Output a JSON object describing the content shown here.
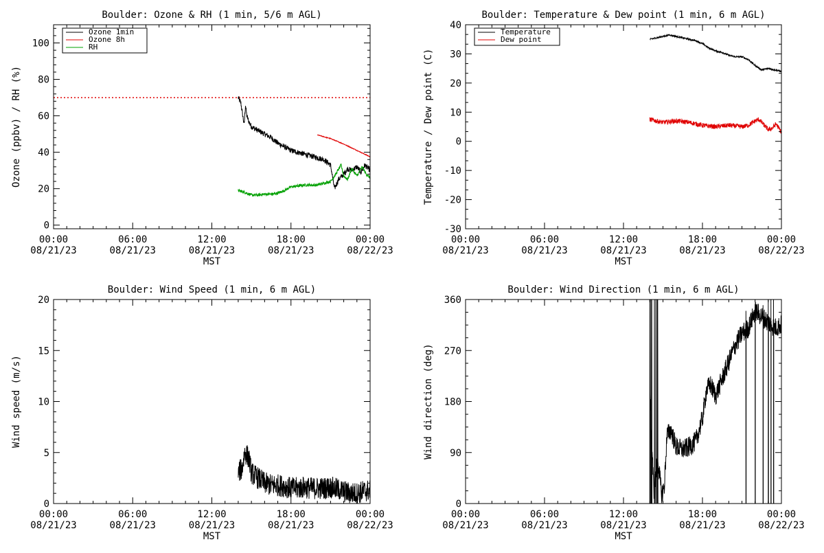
{
  "colors": {
    "black": "#000000",
    "red": "#e00000",
    "green": "#00a000",
    "background": "#ffffff"
  },
  "x_axis": {
    "ticks": [
      {
        "time": "00:00",
        "date": "08/21/23",
        "hour": 0
      },
      {
        "time": "06:00",
        "date": "08/21/23",
        "hour": 6
      },
      {
        "time": "12:00",
        "date": "08/21/23",
        "hour": 12
      },
      {
        "time": "18:00",
        "date": "08/21/23",
        "hour": 18
      },
      {
        "time": "00:00",
        "date": "08/22/23",
        "hour": 24
      }
    ],
    "xlabel": "MST"
  },
  "chart_data": [
    {
      "type": "line",
      "title": "Boulder: Ozone & RH (1 min, 5/6 m AGL)",
      "ylabel": "Ozone (ppbv) / RH (%)",
      "xlabel": "MST",
      "xlim": [
        0,
        24
      ],
      "ylim": [
        -2,
        110
      ],
      "yticks": [
        0,
        20,
        40,
        60,
        80,
        100
      ],
      "legend": "top-left",
      "reference_line": {
        "y": 70,
        "color": "#e00000",
        "style": "dotted"
      },
      "series": [
        {
          "name": "Ozone 1min",
          "color": "#000000",
          "x": [
            14.0,
            14.2,
            14.45,
            14.55,
            14.65,
            14.8,
            15.0,
            15.5,
            16.0,
            16.5,
            17.0,
            17.5,
            18.0,
            18.5,
            19.0,
            19.5,
            20.0,
            20.5,
            21.0,
            21.3,
            21.6,
            22.0,
            22.3,
            22.6,
            23.0,
            23.3,
            23.6,
            24.0
          ],
          "y": [
            70,
            67,
            55,
            66,
            60,
            57,
            54,
            52,
            50,
            48,
            45,
            43,
            41,
            40,
            39,
            38,
            37,
            36,
            33,
            20,
            25,
            28,
            31,
            30,
            32,
            29,
            33,
            30
          ],
          "noise": 1.5
        },
        {
          "name": "Ozone 8h",
          "color": "#e00000",
          "x": [
            20.0,
            21.0,
            22.0,
            23.0,
            24.0
          ],
          "y": [
            49.5,
            47.5,
            44.5,
            41,
            37.5
          ],
          "noise": 0.2
        },
        {
          "name": "RH",
          "color": "#00a000",
          "x": [
            14.0,
            14.5,
            15.0,
            15.5,
            16.0,
            16.5,
            17.0,
            17.5,
            18.0,
            19.0,
            20.0,
            20.5,
            21.0,
            21.4,
            21.8,
            22.0,
            22.3,
            22.6,
            23.0,
            23.4,
            23.7,
            24.0
          ],
          "y": [
            19,
            18,
            16.5,
            16.5,
            17,
            17,
            17.5,
            19,
            21,
            22,
            22,
            23,
            24,
            28,
            33,
            27,
            25,
            31,
            27,
            32,
            28,
            26
          ],
          "noise": 0.8
        }
      ]
    },
    {
      "type": "line",
      "title": "Boulder: Temperature & Dew point (1 min, 6 m AGL)",
      "ylabel": "Temperature / Dew point (C)",
      "xlabel": "MST",
      "xlim": [
        0,
        24
      ],
      "ylim": [
        -30,
        40
      ],
      "yticks": [
        -30,
        -20,
        -10,
        0,
        10,
        20,
        30,
        40
      ],
      "legend": "top-left",
      "series": [
        {
          "name": "Temperature",
          "color": "#000000",
          "x": [
            14.0,
            14.5,
            15.0,
            15.5,
            16.0,
            16.5,
            17.0,
            17.5,
            18.0,
            18.5,
            19.0,
            19.5,
            20.0,
            20.5,
            21.0,
            21.5,
            22.0,
            22.5,
            23.0,
            23.5,
            24.0
          ],
          "y": [
            35,
            35.5,
            36,
            36.5,
            36,
            35.5,
            35,
            34.5,
            33.5,
            32,
            31,
            30.5,
            29.5,
            29,
            29,
            28,
            26,
            24.5,
            25,
            24.5,
            24
          ],
          "noise": 0.3
        },
        {
          "name": "Dew point",
          "color": "#e00000",
          "x": [
            14.0,
            14.5,
            15.0,
            16.0,
            17.0,
            18.0,
            19.0,
            20.0,
            21.0,
            21.5,
            22.0,
            22.3,
            22.6,
            23.0,
            23.3,
            23.6,
            24.0
          ],
          "y": [
            7.5,
            7,
            6.5,
            7,
            6.5,
            5.5,
            5,
            5.5,
            5,
            5.5,
            7,
            7.5,
            6,
            4,
            4.5,
            6,
            3
          ],
          "noise": 0.8
        }
      ]
    },
    {
      "type": "line",
      "title": "Boulder: Wind Speed (1 min, 6 m AGL)",
      "ylabel": "Wind speed (m/s)",
      "xlabel": "MST",
      "xlim": [
        0,
        24
      ],
      "ylim": [
        0,
        20
      ],
      "yticks": [
        0,
        5,
        10,
        15,
        20
      ],
      "series": [
        {
          "name": "",
          "color": "#000000",
          "x": [
            14.0,
            14.3,
            14.5,
            14.8,
            15.0,
            15.5,
            16.0,
            16.5,
            17.0,
            17.5,
            18.0,
            18.5,
            19.0,
            19.5,
            20.0,
            20.5,
            21.0,
            21.5,
            22.0,
            22.5,
            23.0,
            23.5,
            24.0
          ],
          "y": [
            3,
            3.5,
            5.0,
            4.5,
            3,
            2.5,
            2,
            1.8,
            1.8,
            1.7,
            1.5,
            1.5,
            1.6,
            1.5,
            1.5,
            1.5,
            1.6,
            1.4,
            1.2,
            1,
            1,
            1.2,
            1.3
          ],
          "noise": 1.1
        }
      ]
    },
    {
      "type": "line",
      "title": "Boulder: Wind Direction (1 min, 6 m AGL)",
      "ylabel": "Wind direction (deg)",
      "xlabel": "MST",
      "xlim": [
        0,
        24
      ],
      "ylim": [
        0,
        360
      ],
      "yticks": [
        0,
        90,
        180,
        270,
        360
      ],
      "series": [
        {
          "name": "",
          "color": "#000000",
          "x": [
            14.0,
            14.3,
            14.6,
            14.9,
            15.1,
            15.3,
            15.6,
            16.0,
            16.5,
            17.0,
            17.5,
            18.0,
            18.3,
            18.6,
            19.0,
            19.5,
            20.0,
            20.5,
            21.0,
            21.5,
            22.0,
            22.5,
            23.0,
            23.5,
            24.0
          ],
          "y": [
            200,
            20,
            80,
            15,
            30,
            120,
            130,
            100,
            95,
            100,
            110,
            150,
            200,
            210,
            190,
            220,
            250,
            280,
            300,
            310,
            340,
            330,
            320,
            310,
            315
          ],
          "noise": 18,
          "spikes": [
            {
              "x": 14.0,
              "low": 0,
              "high": 360
            },
            {
              "x": 14.08,
              "low": 0,
              "high": 360
            },
            {
              "x": 14.15,
              "low": 0,
              "high": 360
            },
            {
              "x": 14.35,
              "low": 0,
              "high": 360
            },
            {
              "x": 14.45,
              "low": 0,
              "high": 360
            },
            {
              "x": 14.55,
              "low": 0,
              "high": 360
            },
            {
              "x": 14.6,
              "low": 0,
              "high": 360
            },
            {
              "x": 21.3,
              "low": 0,
              "high": 340
            },
            {
              "x": 22.0,
              "low": 0,
              "high": 350
            },
            {
              "x": 22.6,
              "low": 0,
              "high": 350
            },
            {
              "x": 23.0,
              "low": 0,
              "high": 360
            },
            {
              "x": 23.2,
              "low": 0,
              "high": 360
            },
            {
              "x": 23.4,
              "low": 0,
              "high": 360
            }
          ]
        }
      ]
    }
  ]
}
